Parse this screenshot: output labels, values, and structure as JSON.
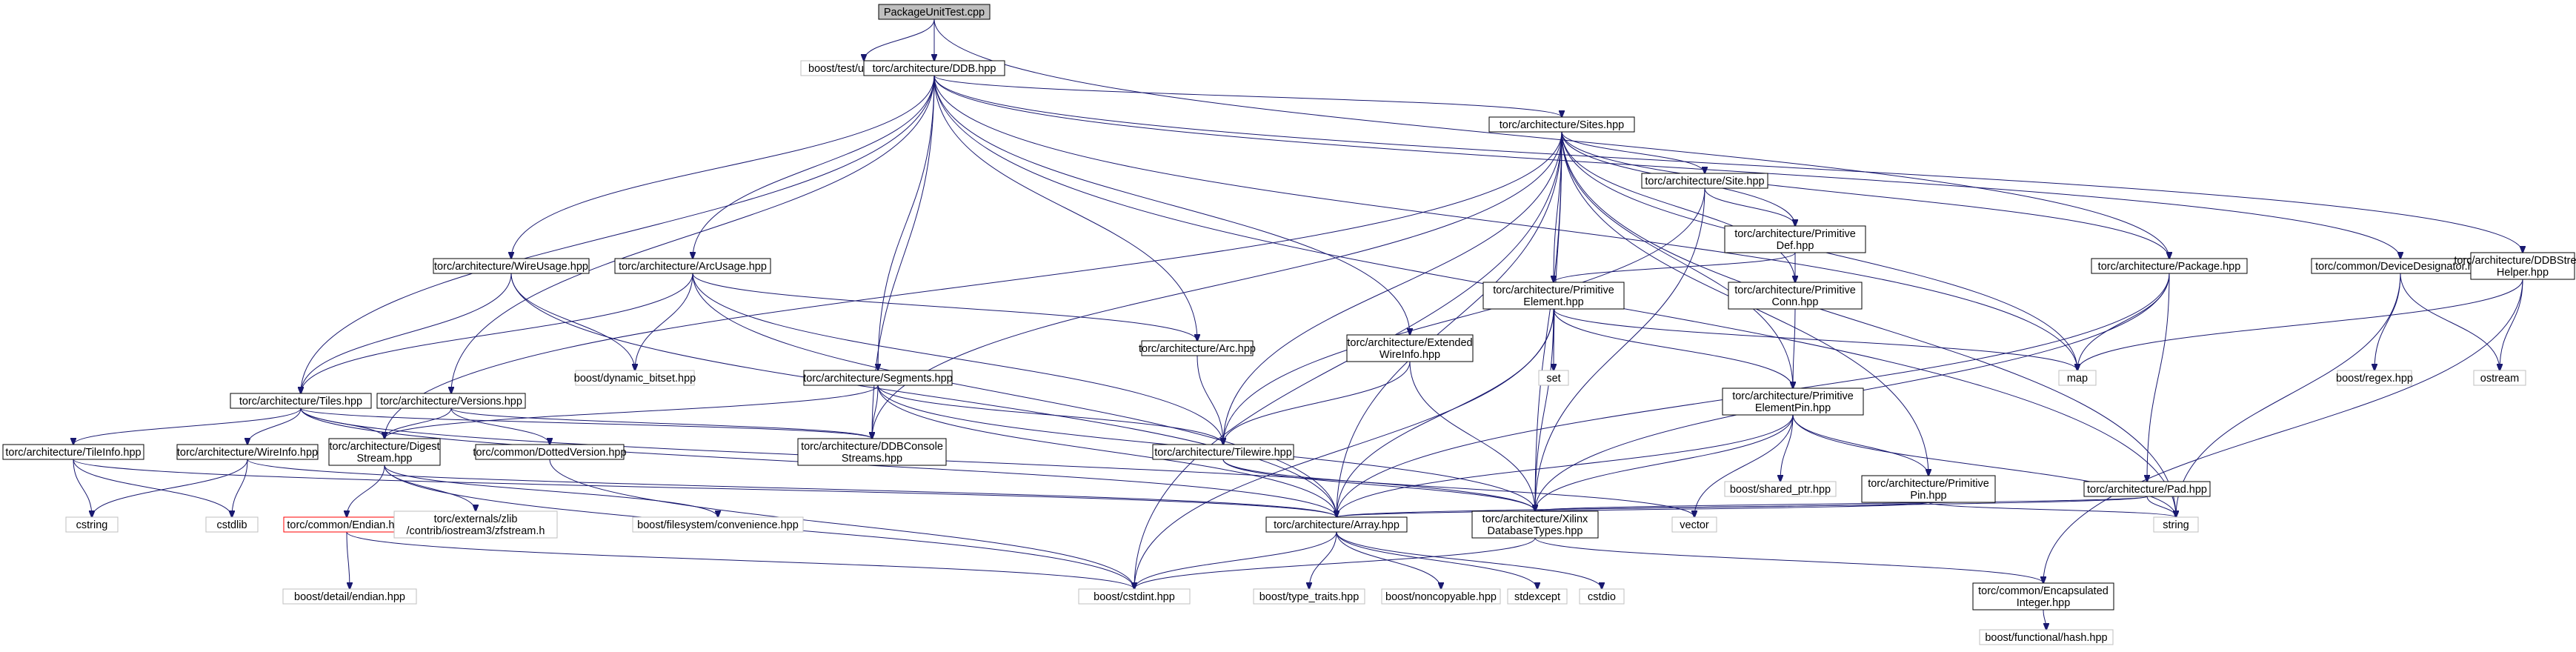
{
  "diagram": {
    "nodes": [
      {
        "id": "n_pkgtest",
        "lines": [
          "PackageUnitTest.cpp"
        ],
        "style": "focus"
      },
      {
        "id": "n_unittest",
        "lines": [
          "boost/test/unit_test.hpp"
        ],
        "style": "external"
      },
      {
        "id": "n_ddb",
        "lines": [
          "torc/architecture/DDB.hpp"
        ],
        "style": "normal"
      },
      {
        "id": "n_sites",
        "lines": [
          "torc/architecture/Sites.hpp"
        ],
        "style": "normal"
      },
      {
        "id": "n_site",
        "lines": [
          "torc/architecture/Site.hpp"
        ],
        "style": "normal"
      },
      {
        "id": "n_primdef",
        "lines": [
          "torc/architecture/Primitive",
          "Def.hpp"
        ],
        "style": "normal"
      },
      {
        "id": "n_primelem",
        "lines": [
          "torc/architecture/Primitive",
          "Element.hpp"
        ],
        "style": "normal"
      },
      {
        "id": "n_primconn",
        "lines": [
          "torc/architecture/Primitive",
          "Conn.hpp"
        ],
        "style": "normal"
      },
      {
        "id": "n_package",
        "lines": [
          "torc/architecture/Package.hpp"
        ],
        "style": "normal"
      },
      {
        "id": "n_devdes",
        "lines": [
          "torc/common/DeviceDesignator.hpp"
        ],
        "style": "normal"
      },
      {
        "id": "n_ddbsh",
        "lines": [
          "torc/architecture/DDBStream",
          "Helper.hpp"
        ],
        "style": "normal"
      },
      {
        "id": "n_wireusage",
        "lines": [
          "torc/architecture/WireUsage.hpp"
        ],
        "style": "normal"
      },
      {
        "id": "n_arcusage",
        "lines": [
          "torc/architecture/ArcUsage.hpp"
        ],
        "style": "normal"
      },
      {
        "id": "n_segments",
        "lines": [
          "torc/architecture/Segments.hpp"
        ],
        "style": "normal"
      },
      {
        "id": "n_arc",
        "lines": [
          "torc/architecture/Arc.hpp"
        ],
        "style": "normal"
      },
      {
        "id": "n_extwire",
        "lines": [
          "torc/architecture/Extended",
          "WireInfo.hpp"
        ],
        "style": "normal"
      },
      {
        "id": "n_map",
        "lines": [
          "map"
        ],
        "style": "external"
      },
      {
        "id": "n_set",
        "lines": [
          "set"
        ],
        "style": "external"
      },
      {
        "id": "n_primelempin",
        "lines": [
          "torc/architecture/Primitive",
          "ElementPin.hpp"
        ],
        "style": "normal"
      },
      {
        "id": "n_boostregex",
        "lines": [
          "boost/regex.hpp"
        ],
        "style": "external"
      },
      {
        "id": "n_ostream",
        "lines": [
          "ostream"
        ],
        "style": "external"
      },
      {
        "id": "n_tiles",
        "lines": [
          "torc/architecture/Tiles.hpp"
        ],
        "style": "normal"
      },
      {
        "id": "n_versions",
        "lines": [
          "torc/architecture/Versions.hpp"
        ],
        "style": "normal"
      },
      {
        "id": "n_dynbitset",
        "lines": [
          "boost/dynamic_bitset.hpp"
        ],
        "style": "external"
      },
      {
        "id": "n_ddbconsole",
        "lines": [
          "torc/architecture/DDBConsole",
          "Streams.hpp"
        ],
        "style": "normal"
      },
      {
        "id": "n_tilewire",
        "lines": [
          "torc/architecture/Tilewire.hpp"
        ],
        "style": "normal"
      },
      {
        "id": "n_tileinfo",
        "lines": [
          "torc/architecture/TileInfo.hpp"
        ],
        "style": "normal"
      },
      {
        "id": "n_wireinfo",
        "lines": [
          "torc/architecture/WireInfo.hpp"
        ],
        "style": "normal"
      },
      {
        "id": "n_digest",
        "lines": [
          "torc/architecture/Digest",
          "Stream.hpp"
        ],
        "style": "normal"
      },
      {
        "id": "n_dotted",
        "lines": [
          "torc/common/DottedVersion.hpp"
        ],
        "style": "normal"
      },
      {
        "id": "n_shptr",
        "lines": [
          "boost/shared_ptr.hpp"
        ],
        "style": "external"
      },
      {
        "id": "n_primpin",
        "lines": [
          "torc/architecture/Primitive",
          "Pin.hpp"
        ],
        "style": "normal"
      },
      {
        "id": "n_pad",
        "lines": [
          "torc/architecture/Pad.hpp"
        ],
        "style": "normal"
      },
      {
        "id": "n_cstring",
        "lines": [
          "cstring"
        ],
        "style": "external"
      },
      {
        "id": "n_cstdlib",
        "lines": [
          "cstdlib"
        ],
        "style": "external"
      },
      {
        "id": "n_endian",
        "lines": [
          "torc/common/Endian.hpp"
        ],
        "style": "incomplete"
      },
      {
        "id": "n_zfstream",
        "lines": [
          "torc/externals/zlib",
          "/contrib/iostream3/zfstream.h"
        ],
        "style": "external"
      },
      {
        "id": "n_fsconv",
        "lines": [
          "boost/filesystem/convenience.hpp"
        ],
        "style": "external"
      },
      {
        "id": "n_array",
        "lines": [
          "torc/architecture/Array.hpp"
        ],
        "style": "normal"
      },
      {
        "id": "n_xdt",
        "lines": [
          "torc/architecture/Xilinx",
          "DatabaseTypes.hpp"
        ],
        "style": "normal"
      },
      {
        "id": "n_vector",
        "lines": [
          "vector"
        ],
        "style": "external"
      },
      {
        "id": "n_string",
        "lines": [
          "string"
        ],
        "style": "external"
      },
      {
        "id": "n_detendian",
        "lines": [
          "boost/detail/endian.hpp"
        ],
        "style": "external"
      },
      {
        "id": "n_cstdint",
        "lines": [
          "boost/cstdint.hpp"
        ],
        "style": "external"
      },
      {
        "id": "n_typetraits",
        "lines": [
          "boost/type_traits.hpp"
        ],
        "style": "external"
      },
      {
        "id": "n_noncopy",
        "lines": [
          "boost/noncopyable.hpp"
        ],
        "style": "external"
      },
      {
        "id": "n_stdexcept",
        "lines": [
          "stdexcept"
        ],
        "style": "external"
      },
      {
        "id": "n_cstdio",
        "lines": [
          "cstdio"
        ],
        "style": "external"
      },
      {
        "id": "n_encint",
        "lines": [
          "torc/common/Encapsulated",
          "Integer.hpp"
        ],
        "style": "normal"
      },
      {
        "id": "n_funchash",
        "lines": [
          "boost/functional/hash.hpp"
        ],
        "style": "external"
      }
    ],
    "edges": [
      [
        "n_pkgtest",
        "n_unittest"
      ],
      [
        "n_pkgtest",
        "n_ddb"
      ],
      [
        "n_pkgtest",
        "n_package"
      ],
      [
        "n_ddb",
        "n_sites"
      ],
      [
        "n_ddb",
        "n_tiles"
      ],
      [
        "n_ddb",
        "n_wireusage"
      ],
      [
        "n_ddb",
        "n_arcusage"
      ],
      [
        "n_ddb",
        "n_versions"
      ],
      [
        "n_ddb",
        "n_segments"
      ],
      [
        "n_ddb",
        "n_ddbconsole"
      ],
      [
        "n_ddb",
        "n_arc"
      ],
      [
        "n_ddb",
        "n_extwire"
      ],
      [
        "n_ddb",
        "n_map"
      ],
      [
        "n_ddb",
        "n_string"
      ],
      [
        "n_ddb",
        "n_devdes"
      ],
      [
        "n_ddb",
        "n_ddbsh"
      ],
      [
        "n_sites",
        "n_site"
      ],
      [
        "n_sites",
        "n_primdef"
      ],
      [
        "n_sites",
        "n_primelem"
      ],
      [
        "n_sites",
        "n_primconn"
      ],
      [
        "n_sites",
        "n_package"
      ],
      [
        "n_sites",
        "n_primelempin"
      ],
      [
        "n_sites",
        "n_primpin"
      ],
      [
        "n_sites",
        "n_set"
      ],
      [
        "n_sites",
        "n_map"
      ],
      [
        "n_sites",
        "n_tilewire"
      ],
      [
        "n_sites",
        "n_array"
      ],
      [
        "n_sites",
        "n_xdt"
      ],
      [
        "n_sites",
        "n_cstdint"
      ],
      [
        "n_sites",
        "n_digest"
      ],
      [
        "n_sites",
        "n_ddbconsole"
      ],
      [
        "n_sites",
        "n_string"
      ],
      [
        "n_site",
        "n_primdef"
      ],
      [
        "n_site",
        "n_tilewire"
      ],
      [
        "n_site",
        "n_xdt"
      ],
      [
        "n_primdef",
        "n_primelem"
      ],
      [
        "n_primdef",
        "n_primconn"
      ],
      [
        "n_primelem",
        "n_primelempin"
      ],
      [
        "n_primelem",
        "n_set"
      ],
      [
        "n_primelem",
        "n_map"
      ],
      [
        "n_primelem",
        "n_xdt"
      ],
      [
        "n_primelem",
        "n_array"
      ],
      [
        "n_primelem",
        "n_cstdint"
      ],
      [
        "n_primconn",
        "n_primelempin"
      ],
      [
        "n_primelempin",
        "n_primpin"
      ],
      [
        "n_primelempin",
        "n_shptr"
      ],
      [
        "n_primelempin",
        "n_vector"
      ],
      [
        "n_primelempin",
        "n_array"
      ],
      [
        "n_primelempin",
        "n_xdt"
      ],
      [
        "n_primelempin",
        "n_string"
      ],
      [
        "n_primpin",
        "n_xdt"
      ],
      [
        "n_primpin",
        "n_array"
      ],
      [
        "n_primpin",
        "n_string"
      ],
      [
        "n_package",
        "n_pad"
      ],
      [
        "n_package",
        "n_map"
      ],
      [
        "n_package",
        "n_array"
      ],
      [
        "n_package",
        "n_xdt"
      ],
      [
        "n_pad",
        "n_xdt"
      ],
      [
        "n_pad",
        "n_array"
      ],
      [
        "n_pad",
        "n_string"
      ],
      [
        "n_devdes",
        "n_boostregex"
      ],
      [
        "n_devdes",
        "n_ostream"
      ],
      [
        "n_devdes",
        "n_string"
      ],
      [
        "n_ddbsh",
        "n_ostream"
      ],
      [
        "n_ddbsh",
        "n_map"
      ],
      [
        "n_ddbsh",
        "n_encint"
      ],
      [
        "n_wireusage",
        "n_tiles"
      ],
      [
        "n_wireusage",
        "n_dynbitset"
      ],
      [
        "n_wireusage",
        "n_array"
      ],
      [
        "n_arcusage",
        "n_tiles"
      ],
      [
        "n_arcusage",
        "n_arc"
      ],
      [
        "n_arcusage",
        "n_dynbitset"
      ],
      [
        "n_arcusage",
        "n_tilewire"
      ],
      [
        "n_arcusage",
        "n_array"
      ],
      [
        "n_segments",
        "n_tilewire"
      ],
      [
        "n_segments",
        "n_digest"
      ],
      [
        "n_segments",
        "n_ddbconsole"
      ],
      [
        "n_segments",
        "n_array"
      ],
      [
        "n_segments",
        "n_xdt"
      ],
      [
        "n_arc",
        "n_tilewire"
      ],
      [
        "n_extwire",
        "n_tilewire"
      ],
      [
        "n_extwire",
        "n_xdt"
      ],
      [
        "n_tiles",
        "n_tileinfo"
      ],
      [
        "n_tiles",
        "n_wireinfo"
      ],
      [
        "n_tiles",
        "n_digest"
      ],
      [
        "n_tiles",
        "n_ddbconsole"
      ],
      [
        "n_tiles",
        "n_array"
      ],
      [
        "n_tiles",
        "n_xdt"
      ],
      [
        "n_versions",
        "n_digest"
      ],
      [
        "n_versions",
        "n_dotted"
      ],
      [
        "n_versions",
        "n_ddbconsole"
      ],
      [
        "n_tileinfo",
        "n_cstring"
      ],
      [
        "n_tileinfo",
        "n_cstdlib"
      ],
      [
        "n_tileinfo",
        "n_array"
      ],
      [
        "n_wireinfo",
        "n_cstring"
      ],
      [
        "n_wireinfo",
        "n_cstdlib"
      ],
      [
        "n_wireinfo",
        "n_array"
      ],
      [
        "n_digest",
        "n_endian"
      ],
      [
        "n_digest",
        "n_zfstream"
      ],
      [
        "n_digest",
        "n_fsconv"
      ],
      [
        "n_digest",
        "n_cstdint"
      ],
      [
        "n_dotted",
        "n_cstdint"
      ],
      [
        "n_tilewire",
        "n_xdt"
      ],
      [
        "n_tilewire",
        "n_vector"
      ],
      [
        "n_endian",
        "n_detendian"
      ],
      [
        "n_endian",
        "n_cstdint"
      ],
      [
        "n_array",
        "n_typetraits"
      ],
      [
        "n_array",
        "n_noncopy"
      ],
      [
        "n_array",
        "n_stdexcept"
      ],
      [
        "n_array",
        "n_cstdio"
      ],
      [
        "n_array",
        "n_cstdint"
      ],
      [
        "n_xdt",
        "n_encint"
      ],
      [
        "n_xdt",
        "n_cstdint"
      ],
      [
        "n_encint",
        "n_funchash"
      ]
    ]
  },
  "colors": {
    "edge": "#191970",
    "focus_fill": "#bfbfbf",
    "normal_stroke": "#000000",
    "external_stroke": "#bfbfbf",
    "incomplete_stroke": "#ff0000"
  }
}
